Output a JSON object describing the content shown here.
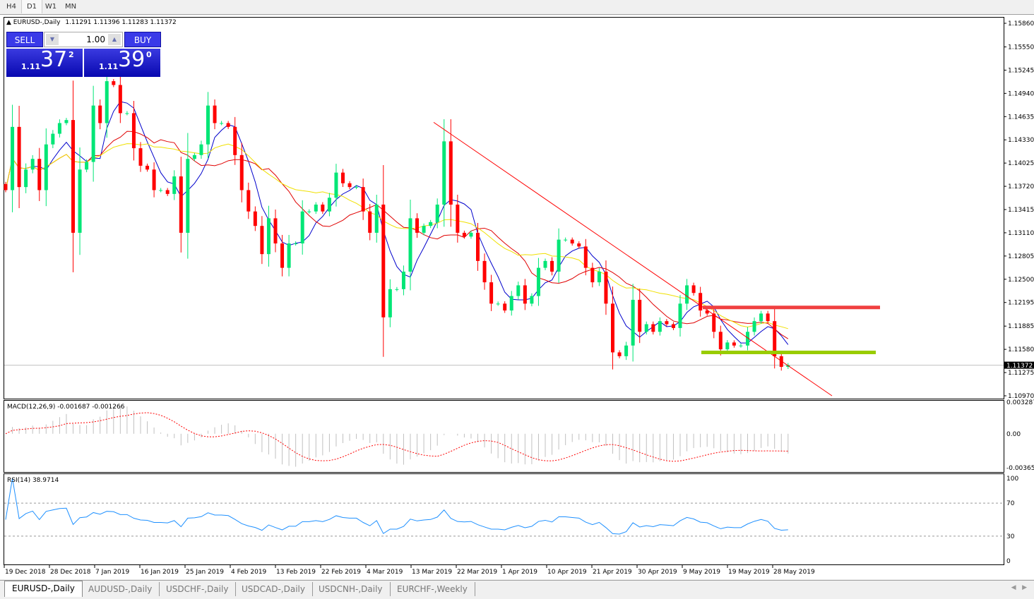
{
  "toolbar": {
    "timeframes": [
      "H4",
      "D1",
      "W1",
      "MN"
    ],
    "active": "D1"
  },
  "chart_header": {
    "symbol": "EURUSD-,Daily",
    "ohlc": "1.11291 1.11396 1.11283 1.11372"
  },
  "trade_panel": {
    "sell_label": "SELL",
    "buy_label": "BUY",
    "lot": "1.00",
    "sell_big": "1.11",
    "sell_mid": "37",
    "sell_sup": "2",
    "buy_big": "1.11",
    "buy_mid": "39",
    "buy_sup": "0"
  },
  "macd": {
    "label": "MACD(12,26,9) -0.001687 -0.001266",
    "ticks": [
      "0.003287",
      "0.00",
      "-0.003659"
    ]
  },
  "rsi": {
    "label": "RSI(14) 38.9714",
    "ticks": [
      "100",
      "70",
      "30",
      "0"
    ]
  },
  "tabs": [
    "EURUSD-,Daily",
    "AUDUSD-,Daily",
    "USDCHF-,Daily",
    "USDCAD-,Daily",
    "USDCNH-,Daily",
    "EURCHF-,Weekly"
  ],
  "colors": {
    "bull": "#00e676",
    "bear": "#ff0000",
    "ma_fast": "#0000cc",
    "ma_mid": "#e00000",
    "ma_slow": "#f0e000",
    "resistance": "#f04040",
    "support": "#99cc00",
    "trendline": "#ff0000"
  },
  "chart_data": {
    "type": "candlestick",
    "symbol": "EURUSD",
    "timeframe": "Daily",
    "price_ticks": [
      "1.15860",
      "1.15550",
      "1.15245",
      "1.14940",
      "1.14635",
      "1.14330",
      "1.14025",
      "1.13720",
      "1.13415",
      "1.13110",
      "1.12805",
      "1.12500",
      "1.12195",
      "1.11885",
      "1.11580",
      "1.11275",
      "1.10970"
    ],
    "ylim": [
      1.1097,
      1.1586
    ],
    "current_price": "1.11372",
    "date_labels": [
      "19 Dec 2018",
      "28 Dec 2018",
      "7 Jan 2019",
      "16 Jan 2019",
      "25 Jan 2019",
      "4 Feb 2019",
      "13 Feb 2019",
      "22 Feb 2019",
      "4 Mar 2019",
      "13 Mar 2019",
      "22 Mar 2019",
      "1 Apr 2019",
      "10 Apr 2019",
      "21 Apr 2019",
      "30 Apr 2019",
      "9 May 2019",
      "19 May 2019",
      "28 May 2019"
    ],
    "closes": [
      1.1367,
      1.145,
      1.1371,
      1.1394,
      1.1408,
      1.1367,
      1.1427,
      1.1441,
      1.1455,
      1.1459,
      1.1311,
      1.1394,
      1.1404,
      1.1478,
      1.1455,
      1.151,
      1.1505,
      1.1468,
      1.1468,
      1.1422,
      1.1399,
      1.1394,
      1.1367,
      1.1367,
      1.1362,
      1.1385,
      1.1311,
      1.1408,
      1.1413,
      1.1427,
      1.1478,
      1.1455,
      1.1455,
      1.145,
      1.1413,
      1.1367,
      1.1339,
      1.132,
      1.1283,
      1.133,
      1.1297,
      1.1265,
      1.1297,
      1.1297,
      1.1339,
      1.1339,
      1.1348,
      1.1339,
      1.1357,
      1.139,
      1.1376,
      1.1371,
      1.1371,
      1.1339,
      1.1311,
      1.1348,
      1.12,
      1.1237,
      1.1237,
      1.126,
      1.133,
      1.1311,
      1.132,
      1.1325,
      1.1348,
      1.1431,
      1.1348,
      1.1311,
      1.1306,
      1.1311,
      1.1274,
      1.1246,
      1.1218,
      1.1218,
      1.1209,
      1.1228,
      1.1242,
      1.1218,
      1.1228,
      1.1265,
      1.1274,
      1.126,
      1.1302,
      1.1302,
      1.1297,
      1.1293,
      1.1265,
      1.1246,
      1.126,
      1.1218,
      1.1154,
      1.1149,
      1.1163,
      1.1223,
      1.1181,
      1.1191,
      1.1181,
      1.1195,
      1.1191,
      1.1186,
      1.1218,
      1.1242,
      1.1232,
      1.1209,
      1.1205,
      1.1181,
      1.1158,
      1.1167,
      1.1163,
      1.1163,
      1.1181,
      1.1195,
      1.1205,
      1.1195,
      1.1149,
      1.1135,
      1.11372
    ],
    "trendline": {
      "from": {
        "date": "13 Mar 2019",
        "price": 1.1456
      },
      "to": {
        "price": 1.1097
      }
    },
    "levels": [
      {
        "price": 1.1213,
        "color": "#f04040"
      },
      {
        "price": 1.1154,
        "color": "#99cc00"
      }
    ],
    "rsi_levels": [
      70,
      30
    ]
  }
}
